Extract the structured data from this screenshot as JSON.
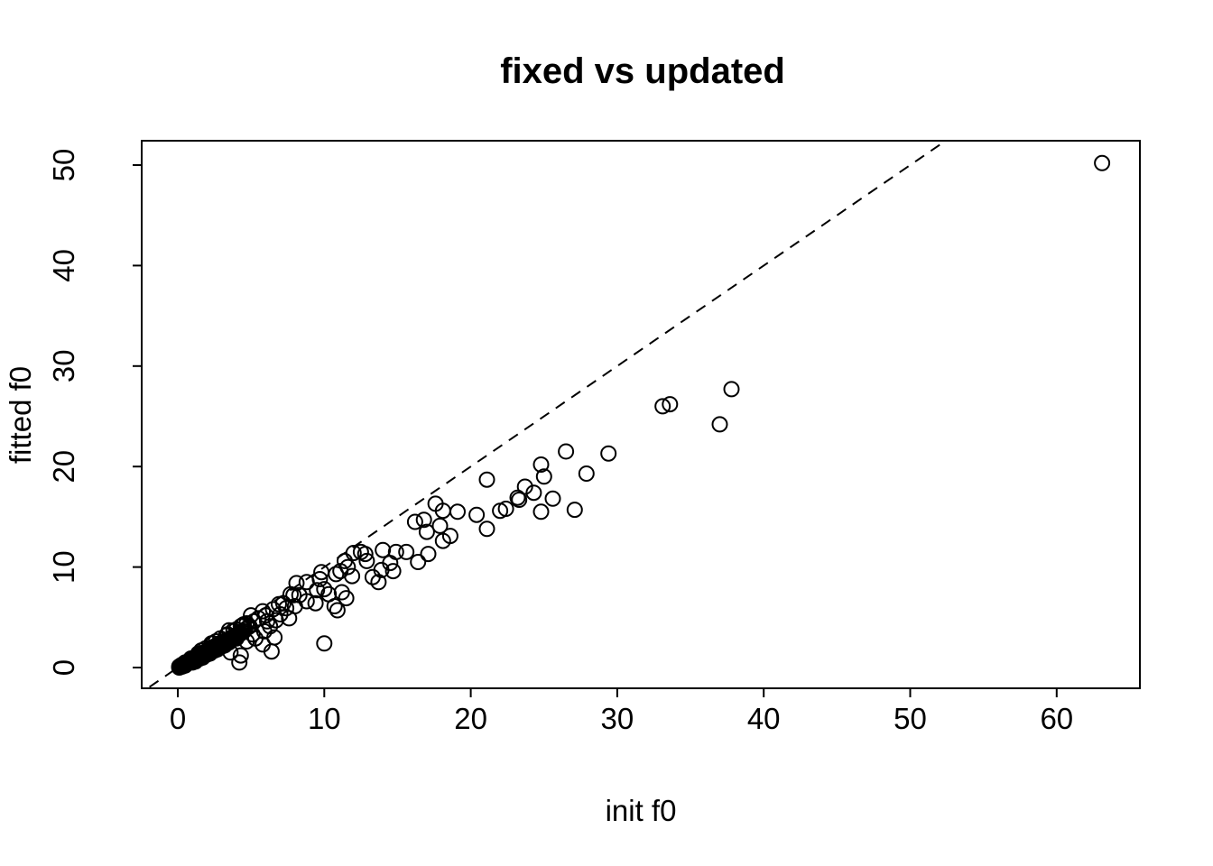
{
  "figure": {
    "background": "#ffffff",
    "foreground": "#000000",
    "description": "R base-graphics scatter plot of fitted f0 versus initial f0 with dashed identity reference line"
  },
  "chart_data": {
    "type": "scatter",
    "title": "fixed vs updated",
    "xlabel": "init f0",
    "ylabel": "fitted f0",
    "x_ticks": [
      0,
      10,
      20,
      30,
      40,
      50,
      60
    ],
    "y_ticks": [
      0,
      10,
      20,
      30,
      40,
      50
    ],
    "xlim": [
      -2.5,
      65.7
    ],
    "ylim": [
      -2.1,
      52.4
    ],
    "grid": false,
    "legend": "none",
    "marker": "open-circle",
    "marker_color": "#000000",
    "reference_line": {
      "style": "dashed",
      "color": "#000000",
      "from": [
        -3,
        -3
      ],
      "to": [
        53.5,
        53.5
      ],
      "meaning": "identity y = x"
    },
    "points": [
      [
        63.1,
        50.2
      ],
      [
        37.8,
        27.7
      ],
      [
        37.0,
        24.2
      ],
      [
        33.1,
        26.0
      ],
      [
        33.6,
        26.2
      ],
      [
        29.4,
        21.3
      ],
      [
        26.5,
        21.5
      ],
      [
        27.9,
        19.3
      ],
      [
        25.0,
        19.0
      ],
      [
        24.8,
        20.2
      ],
      [
        25.6,
        16.8
      ],
      [
        24.8,
        15.5
      ],
      [
        27.1,
        15.7
      ],
      [
        23.7,
        18.0
      ],
      [
        24.3,
        17.4
      ],
      [
        23.2,
        16.9
      ],
      [
        22.4,
        15.8
      ],
      [
        21.1,
        18.7
      ],
      [
        23.3,
        16.7
      ],
      [
        22.0,
        15.6
      ],
      [
        21.1,
        13.8
      ],
      [
        20.4,
        15.2
      ],
      [
        19.1,
        15.5
      ],
      [
        18.1,
        15.6
      ],
      [
        17.6,
        16.3
      ],
      [
        17.9,
        14.1
      ],
      [
        16.8,
        14.7
      ],
      [
        16.2,
        14.5
      ],
      [
        17.0,
        13.5
      ],
      [
        18.6,
        13.1
      ],
      [
        18.1,
        12.6
      ],
      [
        17.1,
        11.3
      ],
      [
        16.4,
        10.5
      ],
      [
        15.6,
        11.5
      ],
      [
        14.9,
        11.5
      ],
      [
        14.0,
        11.7
      ],
      [
        12.5,
        11.5
      ],
      [
        12.8,
        11.3
      ],
      [
        12.9,
        10.6
      ],
      [
        12.0,
        11.4
      ],
      [
        11.4,
        10.6
      ],
      [
        14.5,
        10.4
      ],
      [
        14.7,
        9.6
      ],
      [
        13.9,
        9.7
      ],
      [
        13.3,
        9.0
      ],
      [
        13.7,
        8.5
      ],
      [
        11.9,
        9.1
      ],
      [
        11.1,
        9.6
      ],
      [
        10.8,
        9.3
      ],
      [
        11.6,
        10.0
      ],
      [
        9.8,
        9.5
      ],
      [
        9.7,
        8.8
      ],
      [
        10.0,
        7.8
      ],
      [
        9.5,
        7.7
      ],
      [
        10.3,
        7.3
      ],
      [
        11.2,
        7.5
      ],
      [
        11.5,
        6.9
      ],
      [
        10.7,
        6.1
      ],
      [
        10.9,
        5.7
      ],
      [
        8.8,
        8.5
      ],
      [
        8.1,
        8.4
      ],
      [
        8.3,
        7.2
      ],
      [
        7.7,
        7.3
      ],
      [
        8.0,
        6.1
      ],
      [
        8.8,
        6.6
      ],
      [
        9.4,
        6.4
      ],
      [
        10.0,
        2.4
      ],
      [
        7.9,
        7.2
      ],
      [
        7.4,
        5.9
      ],
      [
        7.2,
        6.4
      ],
      [
        6.9,
        6.3
      ],
      [
        6.0,
        5.2
      ],
      [
        6.3,
        4.1
      ],
      [
        5.2,
        4.6
      ],
      [
        4.5,
        4.3
      ],
      [
        3.5,
        3.7
      ],
      [
        5.8,
        5.6
      ],
      [
        6.5,
        5.8
      ],
      [
        7.0,
        5.3
      ],
      [
        5.5,
        4.9
      ],
      [
        4.8,
        4.0
      ],
      [
        4.2,
        3.4
      ],
      [
        5.0,
        5.2
      ],
      [
        5.8,
        2.3
      ],
      [
        6.6,
        3.0
      ],
      [
        4.2,
        0.5
      ],
      [
        4.3,
        1.2
      ],
      [
        3.6,
        1.5
      ],
      [
        6.4,
        1.6
      ],
      [
        5.3,
        2.9
      ],
      [
        4.7,
        2.6
      ],
      [
        6.1,
        4.6
      ],
      [
        6.7,
        4.7
      ],
      [
        7.6,
        4.9
      ],
      [
        5.9,
        3.6
      ],
      [
        5.1,
        3.3
      ],
      [
        0.1,
        0.1
      ],
      [
        0.1,
        0.0
      ],
      [
        0.2,
        0.1
      ],
      [
        0.2,
        0.2
      ],
      [
        0.3,
        0.2
      ],
      [
        0.3,
        0.1
      ],
      [
        0.3,
        0.3
      ],
      [
        0.4,
        0.3
      ],
      [
        0.4,
        0.2
      ],
      [
        0.5,
        0.4
      ],
      [
        0.5,
        0.3
      ],
      [
        0.5,
        0.5
      ],
      [
        0.6,
        0.4
      ],
      [
        0.6,
        0.5
      ],
      [
        0.7,
        0.5
      ],
      [
        0.7,
        0.6
      ],
      [
        0.8,
        0.6
      ],
      [
        0.8,
        0.5
      ],
      [
        0.8,
        0.7
      ],
      [
        0.9,
        0.7
      ],
      [
        0.9,
        0.6
      ],
      [
        1.0,
        0.8
      ],
      [
        1.0,
        0.7
      ],
      [
        1.0,
        0.9
      ],
      [
        1.1,
        0.8
      ],
      [
        1.1,
        0.9
      ],
      [
        1.2,
        0.9
      ],
      [
        1.2,
        1.0
      ],
      [
        1.2,
        0.8
      ],
      [
        1.3,
        1.0
      ],
      [
        1.3,
        1.1
      ],
      [
        1.4,
        1.1
      ],
      [
        1.4,
        1.0
      ],
      [
        1.5,
        1.2
      ],
      [
        1.5,
        1.1
      ],
      [
        1.5,
        1.3
      ],
      [
        1.6,
        1.2
      ],
      [
        1.6,
        1.3
      ],
      [
        1.7,
        1.3
      ],
      [
        1.7,
        1.4
      ],
      [
        1.8,
        1.4
      ],
      [
        1.8,
        1.3
      ],
      [
        1.8,
        1.5
      ],
      [
        1.9,
        1.5
      ],
      [
        1.9,
        1.4
      ],
      [
        2.0,
        1.6
      ],
      [
        2.0,
        1.5
      ],
      [
        2.0,
        1.7
      ],
      [
        2.1,
        1.6
      ],
      [
        2.1,
        1.7
      ],
      [
        2.2,
        1.7
      ],
      [
        2.2,
        1.8
      ],
      [
        2.3,
        1.8
      ],
      [
        2.3,
        1.7
      ],
      [
        2.4,
        1.9
      ],
      [
        2.4,
        1.8
      ],
      [
        2.5,
        2.0
      ],
      [
        2.5,
        1.9
      ],
      [
        2.5,
        2.1
      ],
      [
        2.6,
        2.0
      ],
      [
        2.6,
        2.1
      ],
      [
        2.7,
        2.1
      ],
      [
        2.7,
        2.2
      ],
      [
        2.8,
        2.2
      ],
      [
        2.8,
        2.1
      ],
      [
        2.9,
        2.3
      ],
      [
        2.9,
        2.2
      ],
      [
        3.0,
        2.4
      ],
      [
        3.0,
        2.3
      ],
      [
        3.0,
        2.5
      ],
      [
        3.1,
        2.4
      ],
      [
        3.1,
        2.5
      ],
      [
        3.2,
        2.5
      ],
      [
        3.2,
        2.6
      ],
      [
        3.3,
        2.6
      ],
      [
        3.3,
        2.5
      ],
      [
        3.4,
        2.7
      ],
      [
        3.4,
        2.6
      ],
      [
        3.5,
        2.8
      ],
      [
        3.5,
        2.7
      ],
      [
        3.6,
        2.8
      ],
      [
        3.6,
        2.9
      ],
      [
        3.7,
        2.9
      ],
      [
        3.7,
        3.0
      ],
      [
        3.8,
        3.0
      ],
      [
        3.8,
        2.9
      ],
      [
        3.9,
        3.1
      ],
      [
        3.9,
        3.0
      ],
      [
        4.0,
        3.2
      ],
      [
        4.0,
        3.1
      ],
      [
        4.1,
        3.2
      ],
      [
        4.1,
        3.3
      ],
      [
        4.2,
        3.3
      ],
      [
        4.3,
        3.4
      ],
      [
        4.4,
        3.5
      ],
      [
        4.5,
        3.6
      ],
      [
        0.15,
        0.05
      ],
      [
        0.25,
        0.15
      ],
      [
        0.35,
        0.25
      ],
      [
        0.45,
        0.35
      ],
      [
        0.55,
        0.45
      ],
      [
        0.65,
        0.55
      ],
      [
        0.75,
        0.6
      ],
      [
        0.85,
        0.65
      ],
      [
        0.95,
        0.75
      ],
      [
        1.05,
        0.85
      ],
      [
        1.15,
        0.95
      ],
      [
        1.25,
        1.05
      ],
      [
        1.35,
        1.1
      ],
      [
        1.45,
        1.15
      ],
      [
        1.55,
        1.25
      ],
      [
        1.65,
        1.35
      ],
      [
        1.75,
        1.45
      ],
      [
        1.85,
        1.5
      ],
      [
        1.95,
        1.55
      ],
      [
        2.05,
        1.65
      ],
      [
        2.15,
        1.75
      ],
      [
        2.25,
        1.85
      ],
      [
        2.35,
        1.9
      ],
      [
        2.45,
        1.95
      ],
      [
        2.55,
        2.05
      ],
      [
        2.65,
        2.15
      ],
      [
        2.75,
        2.25
      ],
      [
        2.85,
        2.3
      ],
      [
        2.95,
        2.35
      ],
      [
        3.05,
        2.45
      ],
      [
        3.15,
        2.55
      ],
      [
        3.25,
        2.65
      ],
      [
        3.45,
        2.75
      ],
      [
        3.65,
        2.95
      ],
      [
        3.85,
        3.1
      ],
      [
        4.05,
        3.25
      ],
      [
        4.25,
        3.45
      ],
      [
        0.5,
        0.2
      ],
      [
        1.0,
        0.5
      ],
      [
        1.5,
        0.9
      ],
      [
        2.0,
        1.3
      ],
      [
        2.5,
        1.7
      ],
      [
        3.0,
        2.1
      ],
      [
        3.5,
        2.5
      ],
      [
        1.2,
        0.6
      ],
      [
        1.7,
        1.0
      ],
      [
        2.2,
        1.4
      ],
      [
        2.7,
        1.8
      ],
      [
        3.2,
        2.2
      ],
      [
        4.0,
        2.9
      ],
      [
        2.4,
        2.4
      ],
      [
        1.9,
        1.9
      ],
      [
        1.4,
        1.4
      ],
      [
        2.9,
        2.9
      ],
      [
        3.4,
        3.3
      ],
      [
        0.9,
        0.9
      ],
      [
        2.6,
        2.6
      ],
      [
        4.0,
        3.8
      ],
      [
        4.4,
        4.2
      ],
      [
        3.8,
        3.7
      ],
      [
        4.6,
        3.8
      ],
      [
        4.7,
        4.4
      ],
      [
        4.9,
        4.1
      ],
      [
        3.3,
        3.2
      ],
      [
        1.6,
        1.7
      ],
      [
        2.3,
        2.4
      ],
      [
        4.3,
        4.1
      ]
    ]
  }
}
